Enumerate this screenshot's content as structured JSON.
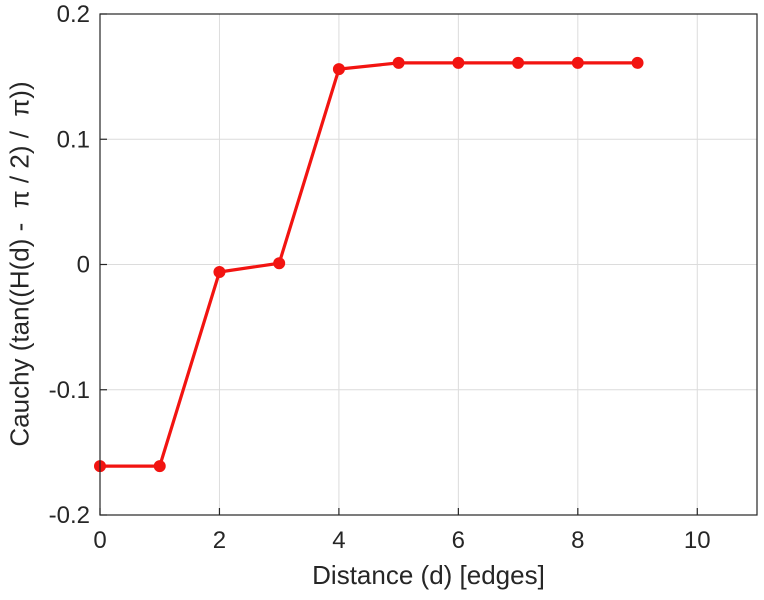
{
  "figure": {
    "background": "#ffffff"
  },
  "chart_data": {
    "type": "line",
    "title": "",
    "xlabel": "Distance (d) [edges]",
    "ylabel": "Cauchy (tan((H(d) -  π / 2) /  π))",
    "x": [
      0,
      1,
      2,
      3,
      4,
      5,
      6,
      7,
      8,
      9
    ],
    "y": [
      -0.161,
      -0.161,
      -0.006,
      0.001,
      0.156,
      0.161,
      0.161,
      0.161,
      0.161,
      0.161
    ],
    "xlim": [
      0,
      11
    ],
    "ylim": [
      -0.2,
      0.2
    ],
    "xticks": [
      0,
      2,
      4,
      6,
      8,
      10
    ],
    "xtick_labels": [
      "0",
      "2",
      "4",
      "6",
      "8",
      "10"
    ],
    "yticks": [
      -0.2,
      -0.1,
      0,
      0.1,
      0.2
    ],
    "ytick_labels": [
      "-0.2",
      "-0.1",
      "0",
      "0.1",
      "0.2"
    ],
    "grid": true,
    "legend_position": "none",
    "series": [
      {
        "name": "Cauchy",
        "color": "#f21411",
        "marker": "filled-circle",
        "marker_size": 5.5,
        "line_width": 3.2
      }
    ],
    "colors": {
      "axis": "#262626",
      "grid": "#dcdcdc",
      "tick_label": "#262626",
      "background": "#ffffff"
    }
  }
}
